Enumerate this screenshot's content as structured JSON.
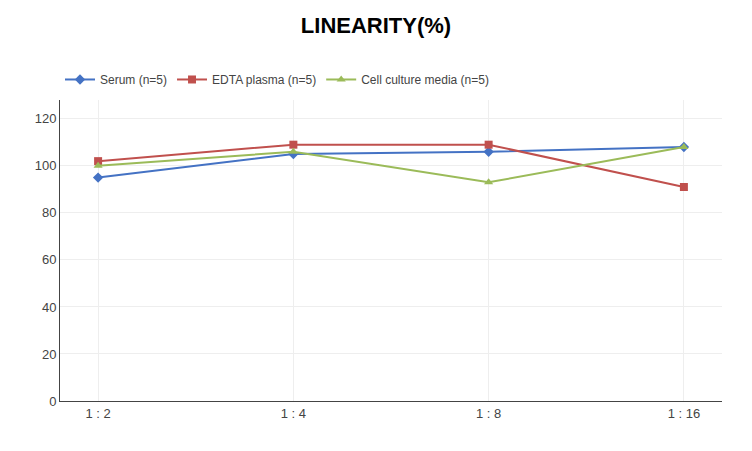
{
  "chart_data": {
    "type": "line",
    "title": "LINEARITY(%)",
    "categories": [
      "1 : 2",
      "1 : 4",
      "1 : 8",
      "1 : 16"
    ],
    "series": [
      {
        "name": "Serum (n=5)",
        "color": "#4472C4",
        "marker": "diamond",
        "values": [
          95,
          105,
          106,
          108
        ]
      },
      {
        "name": "EDTA plasma (n=5)",
        "color": "#C0504D",
        "marker": "square",
        "values": [
          102,
          109,
          109,
          91
        ]
      },
      {
        "name": "Cell culture media (n=5)",
        "color": "#9BBB59",
        "marker": "triangle-up",
        "values": [
          100,
          106,
          93,
          108
        ]
      }
    ],
    "ylim": [
      0,
      128
    ],
    "yticks": [
      0,
      20,
      40,
      60,
      80,
      100,
      120
    ],
    "grid": true,
    "legend": "upper left"
  }
}
